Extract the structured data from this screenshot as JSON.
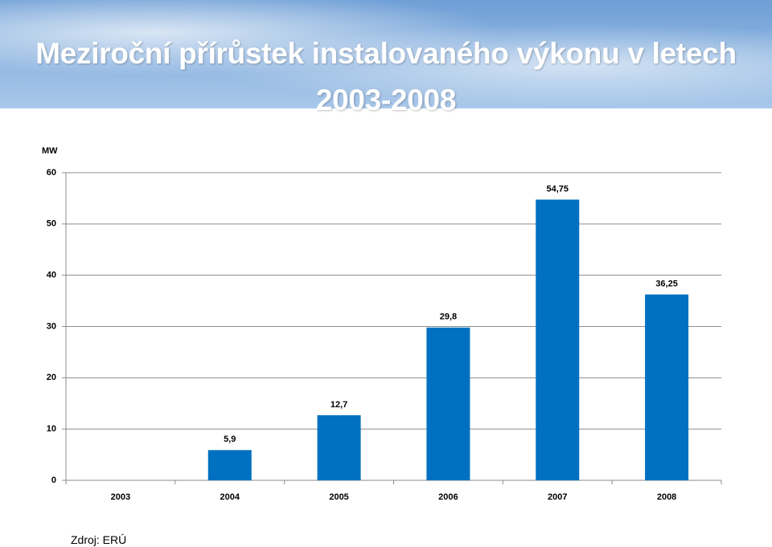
{
  "title": "Meziroční přírůstek instalovaného výkonu v letech 2003-2008",
  "chart_data": {
    "type": "bar",
    "y_label": "MW",
    "categories": [
      "2003",
      "2004",
      "2005",
      "2006",
      "2007",
      "2008"
    ],
    "values": [
      0,
      5.9,
      12.7,
      29.8,
      54.75,
      36.25
    ],
    "value_labels": [
      null,
      "5,9",
      "12,7",
      "29,8",
      "54,75",
      "36,25"
    ],
    "color": "#0070c0",
    "ylim": [
      0,
      60
    ],
    "yticks": [
      0,
      10,
      20,
      30,
      40,
      50,
      60
    ],
    "grid": true
  },
  "source": "Zdroj: ERÚ"
}
